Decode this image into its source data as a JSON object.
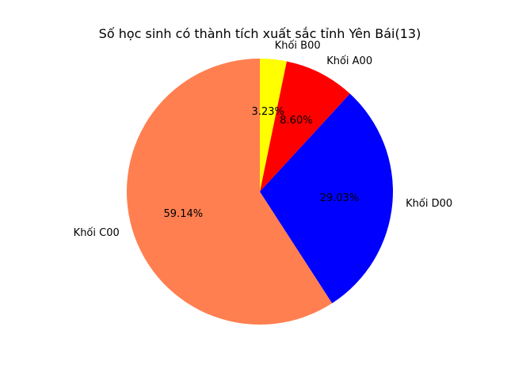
{
  "chart_data": {
    "type": "pie",
    "title": "Số học sinh có thành tích xuất sắc tỉnh Yên Bái(13)",
    "start_angle_deg": 90,
    "direction": "counterclockwise",
    "slices": [
      {
        "label": "Khối C00",
        "percent": 59.14,
        "percent_label": "59.14%",
        "color": "#FF7F50"
      },
      {
        "label": "Khối D00",
        "percent": 29.03,
        "percent_label": "29.03%",
        "color": "#0000FF"
      },
      {
        "label": "Khối A00",
        "percent": 8.6,
        "percent_label": "8.60%",
        "color": "#FF0000"
      },
      {
        "label": "Khối B00",
        "percent": 3.23,
        "percent_label": "3.23%",
        "color": "#FFFF00"
      }
    ]
  }
}
